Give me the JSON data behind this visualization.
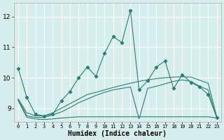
{
  "title": "",
  "xlabel": "Humidex (Indice chaleur)",
  "bg_color": "#d6efed",
  "grid_color": "#ffffff",
  "line_color": "#2e7d72",
  "xlim": [
    -0.5,
    23.5
  ],
  "ylim": [
    8.55,
    12.45
  ],
  "yticks": [
    9,
    10,
    11,
    12
  ],
  "xticks": [
    0,
    1,
    2,
    3,
    4,
    5,
    6,
    7,
    8,
    9,
    10,
    11,
    12,
    13,
    14,
    15,
    16,
    17,
    18,
    19,
    20,
    21,
    22,
    23
  ],
  "main_line_x": [
    0,
    1,
    2,
    3,
    4,
    5,
    6,
    7,
    8,
    9,
    10,
    11,
    12,
    13,
    14,
    15,
    16,
    17,
    18,
    19,
    20,
    21,
    22,
    23
  ],
  "main_line_y": [
    10.3,
    9.35,
    8.8,
    8.75,
    8.8,
    9.25,
    9.55,
    10.0,
    10.35,
    10.05,
    10.8,
    11.35,
    11.15,
    12.2,
    9.6,
    9.9,
    10.35,
    10.55,
    9.65,
    10.1,
    9.85,
    9.7,
    9.45,
    8.7
  ],
  "line2_x": [
    0,
    1,
    2,
    3,
    4,
    5,
    6,
    7,
    8,
    9,
    10,
    11,
    12,
    13,
    14,
    15,
    16,
    17,
    18,
    19,
    20,
    21,
    22,
    23
  ],
  "line2_y": [
    9.3,
    8.85,
    8.75,
    8.75,
    8.85,
    9.0,
    9.15,
    9.3,
    9.45,
    9.52,
    9.6,
    9.68,
    9.75,
    9.82,
    9.88,
    9.93,
    9.97,
    10.0,
    10.02,
    10.03,
    10.02,
    9.92,
    9.82,
    8.72
  ],
  "line3_x": [
    0,
    1,
    2,
    3,
    4,
    5,
    6,
    7,
    8,
    9,
    10,
    11,
    12,
    13,
    14,
    15,
    16,
    17,
    18,
    19,
    20,
    21,
    22,
    23
  ],
  "line3_y": [
    9.3,
    8.75,
    8.7,
    8.7,
    8.78,
    8.88,
    9.02,
    9.18,
    9.3,
    9.42,
    9.52,
    9.6,
    9.65,
    9.7,
    8.65,
    9.65,
    9.72,
    9.8,
    9.88,
    9.93,
    9.88,
    9.72,
    9.6,
    8.68
  ],
  "line4_x": [
    0,
    1,
    2,
    3,
    4,
    5,
    6,
    7,
    8,
    9,
    10,
    11,
    12,
    13,
    14,
    15,
    16,
    17,
    18,
    19,
    20,
    21,
    22,
    23
  ],
  "line4_y": [
    9.25,
    8.7,
    8.65,
    8.63,
    8.65,
    8.68,
    8.7,
    8.72,
    8.72,
    8.72,
    8.72,
    8.72,
    8.72,
    8.72,
    8.72,
    8.72,
    8.72,
    8.72,
    8.72,
    8.72,
    8.72,
    8.72,
    8.72,
    8.68
  ]
}
